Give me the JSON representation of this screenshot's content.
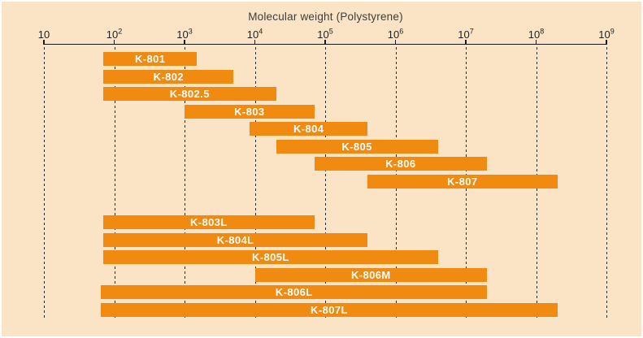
{
  "chart_data": {
    "type": "range-bar",
    "title": "Molecular weight (Polystyrene)",
    "orientation": "horizontal",
    "x_axis": {
      "scale": "log10",
      "min": 10,
      "max": 1000000000,
      "ticks": [
        10,
        100,
        1000,
        10000,
        100000,
        1000000,
        10000000,
        100000000,
        1000000000
      ],
      "gridlines": "dashed-vertical"
    },
    "groups": [
      {
        "id": "group-1",
        "bars": [
          {
            "label": "K-801",
            "from": 70,
            "to": 1500
          },
          {
            "label": "K-802",
            "from": 70,
            "to": 5000
          },
          {
            "label": "K-802.5",
            "from": 70,
            "to": 20000
          },
          {
            "label": "K-803",
            "from": 1000,
            "to": 70000
          },
          {
            "label": "K-804",
            "from": 8500,
            "to": 400000
          },
          {
            "label": "K-805",
            "from": 20000,
            "to": 4000000
          },
          {
            "label": "K-806",
            "from": 70000,
            "to": 20000000
          },
          {
            "label": "K-807",
            "from": 400000,
            "to": 200000000
          }
        ]
      },
      {
        "id": "group-2",
        "bars": [
          {
            "label": "K-803L",
            "from": 70,
            "to": 70000
          },
          {
            "label": "K-804L",
            "from": 70,
            "to": 400000
          },
          {
            "label": "K-805L",
            "from": 70,
            "to": 4000000
          },
          {
            "label": "K-806M",
            "from": 10000,
            "to": 20000000
          },
          {
            "label": "K-806L",
            "from": 65,
            "to": 20000000
          },
          {
            "label": "K-807L",
            "from": 65,
            "to": 200000000
          }
        ]
      }
    ],
    "colors": {
      "bar": "#F08A10",
      "background": "#FAE4C5",
      "bar_label": "#FFFFFF",
      "axis": "#1A1A1A",
      "grid": "#2A2A2A",
      "title_text": "#3D3D3D"
    }
  }
}
